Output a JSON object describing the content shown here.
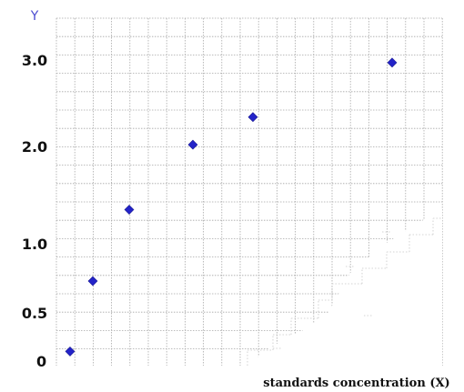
{
  "chart_data": {
    "type": "scatter",
    "title": "",
    "xlabel": "standards concentration (X)",
    "ylabel": "Y",
    "y_ticks": [
      {
        "value": 0,
        "label": "0"
      },
      {
        "value": 0.5,
        "label": "0.5"
      },
      {
        "value": 1.0,
        "label": "1.0"
      },
      {
        "value": 2.0,
        "label": "2.0"
      },
      {
        "value": 3.0,
        "label": "3.0"
      }
    ],
    "x_ticks": [],
    "grid": true,
    "legend": "none",
    "series": [
      {
        "marker": "diamond",
        "color": "#2323c8",
        "points": [
          {
            "x": 1,
            "y": 0.1
          },
          {
            "x": 2,
            "y": 0.73
          },
          {
            "x": 3,
            "y": 1.35
          },
          {
            "x": 4,
            "y": 2.02
          },
          {
            "x": 5,
            "y": 2.34
          },
          {
            "x": 6,
            "y": 2.97
          }
        ]
      }
    ]
  }
}
